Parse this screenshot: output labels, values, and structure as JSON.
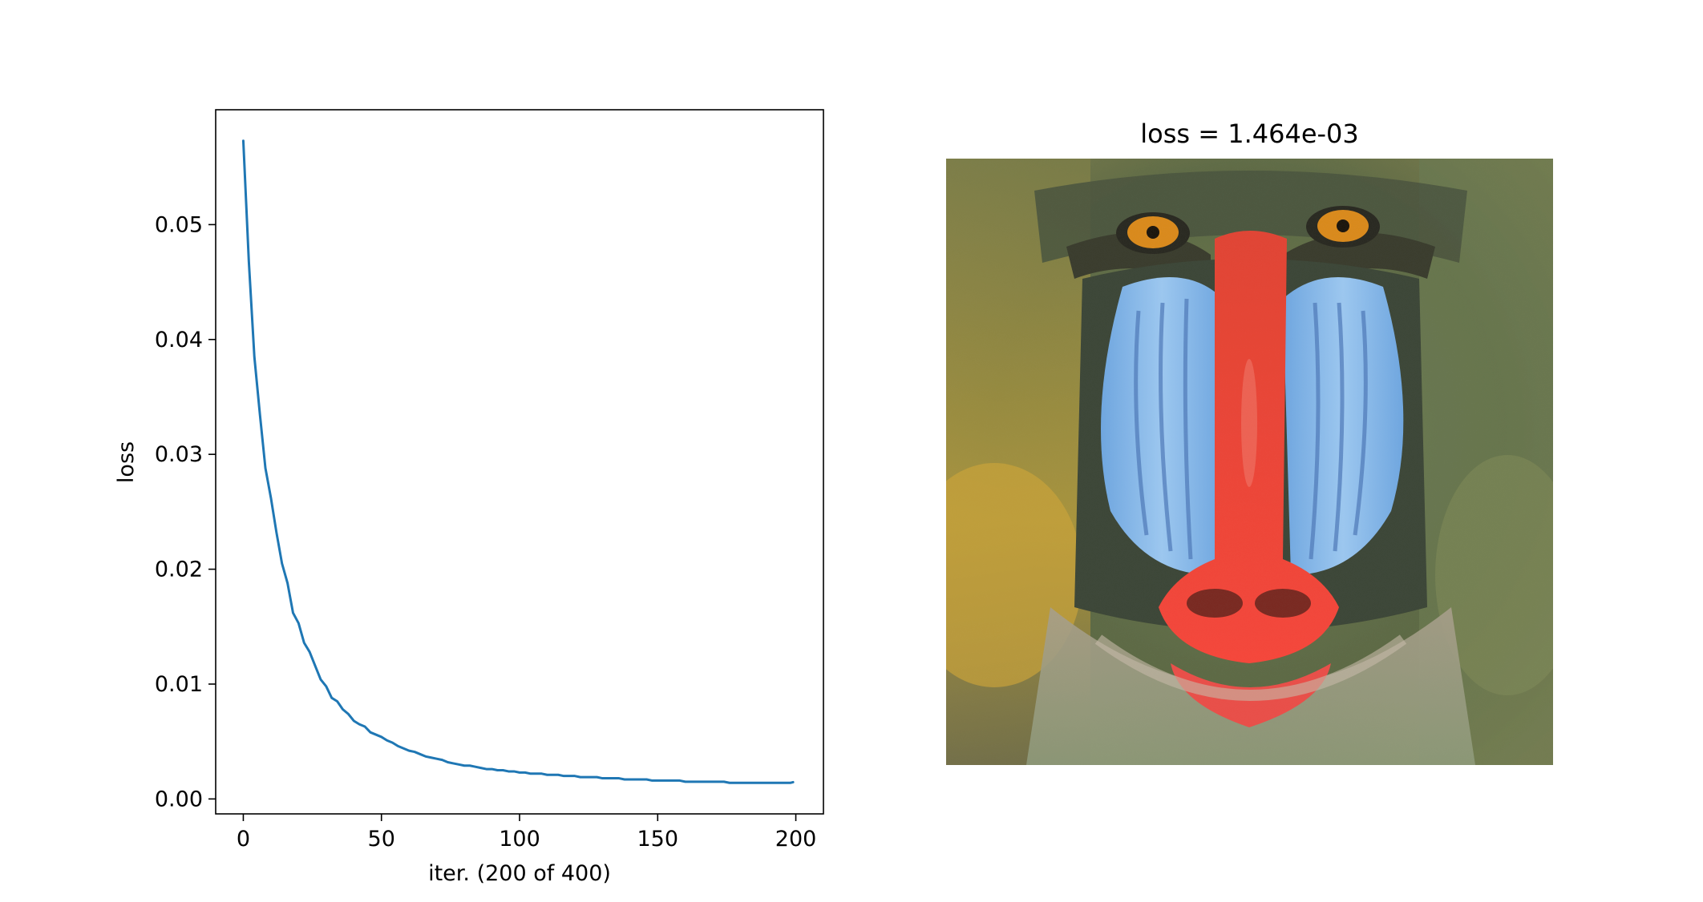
{
  "colors": {
    "line": "#1f77b4",
    "axes": "#000000",
    "background": "#ffffff"
  },
  "chart_data": [
    {
      "type": "line",
      "title": "",
      "xlabel": "iter. (200 of 400)",
      "ylabel": "loss",
      "xlim": [
        -10,
        210
      ],
      "ylim": [
        -0.0013,
        0.06
      ],
      "xticks": [
        0,
        50,
        100,
        150,
        200
      ],
      "xtick_labels": [
        "0",
        "50",
        "100",
        "150",
        "200"
      ],
      "yticks": [
        0.0,
        0.01,
        0.02,
        0.03,
        0.04,
        0.05
      ],
      "ytick_labels": [
        "0.00",
        "0.01",
        "0.02",
        "0.03",
        "0.04",
        "0.05"
      ],
      "grid": false,
      "series": [
        {
          "x": [
            0,
            2,
            4,
            6,
            8,
            10,
            12,
            14,
            16,
            18,
            20,
            22,
            24,
            26,
            28,
            30,
            32,
            34,
            36,
            38,
            40,
            42,
            44,
            46,
            48,
            50,
            52,
            54,
            56,
            58,
            60,
            62,
            64,
            66,
            68,
            70,
            72,
            74,
            76,
            78,
            80,
            82,
            84,
            86,
            88,
            90,
            92,
            94,
            96,
            98,
            100,
            102,
            104,
            106,
            108,
            110,
            112,
            114,
            116,
            118,
            120,
            122,
            124,
            126,
            128,
            130,
            132,
            134,
            136,
            138,
            140,
            142,
            144,
            146,
            148,
            150,
            152,
            154,
            156,
            158,
            160,
            162,
            164,
            166,
            168,
            170,
            172,
            174,
            176,
            178,
            180,
            182,
            184,
            186,
            188,
            190,
            192,
            194,
            196,
            198,
            199
          ],
          "y": [
            0.0573,
            0.0468,
            0.0385,
            0.0335,
            0.0288,
            0.0262,
            0.0232,
            0.0205,
            0.0188,
            0.0162,
            0.0153,
            0.0136,
            0.0128,
            0.0116,
            0.0104,
            0.0098,
            0.0088,
            0.0085,
            0.0078,
            0.0074,
            0.0068,
            0.0065,
            0.0063,
            0.0058,
            0.0056,
            0.0054,
            0.0051,
            0.0049,
            0.0046,
            0.0044,
            0.0042,
            0.0041,
            0.0039,
            0.0037,
            0.0036,
            0.0035,
            0.0034,
            0.0032,
            0.0031,
            0.003,
            0.0029,
            0.0029,
            0.0028,
            0.0027,
            0.0026,
            0.0026,
            0.0025,
            0.0025,
            0.0024,
            0.0024,
            0.0023,
            0.0023,
            0.0022,
            0.0022,
            0.0022,
            0.0021,
            0.0021,
            0.0021,
            0.002,
            0.002,
            0.002,
            0.0019,
            0.0019,
            0.0019,
            0.0019,
            0.0018,
            0.0018,
            0.0018,
            0.0018,
            0.0017,
            0.0017,
            0.0017,
            0.0017,
            0.0017,
            0.0016,
            0.0016,
            0.0016,
            0.0016,
            0.0016,
            0.0016,
            0.0015,
            0.0015,
            0.0015,
            0.0015,
            0.0015,
            0.0015,
            0.0015,
            0.0015,
            0.0014,
            0.0014,
            0.0014,
            0.0014,
            0.0014,
            0.0014,
            0.0014,
            0.0014,
            0.0014,
            0.0014,
            0.0014,
            0.0014,
            0.00146
          ]
        }
      ]
    },
    {
      "type": "image",
      "title": "loss = 1.464e-03",
      "subject": "mandrill face"
    }
  ]
}
